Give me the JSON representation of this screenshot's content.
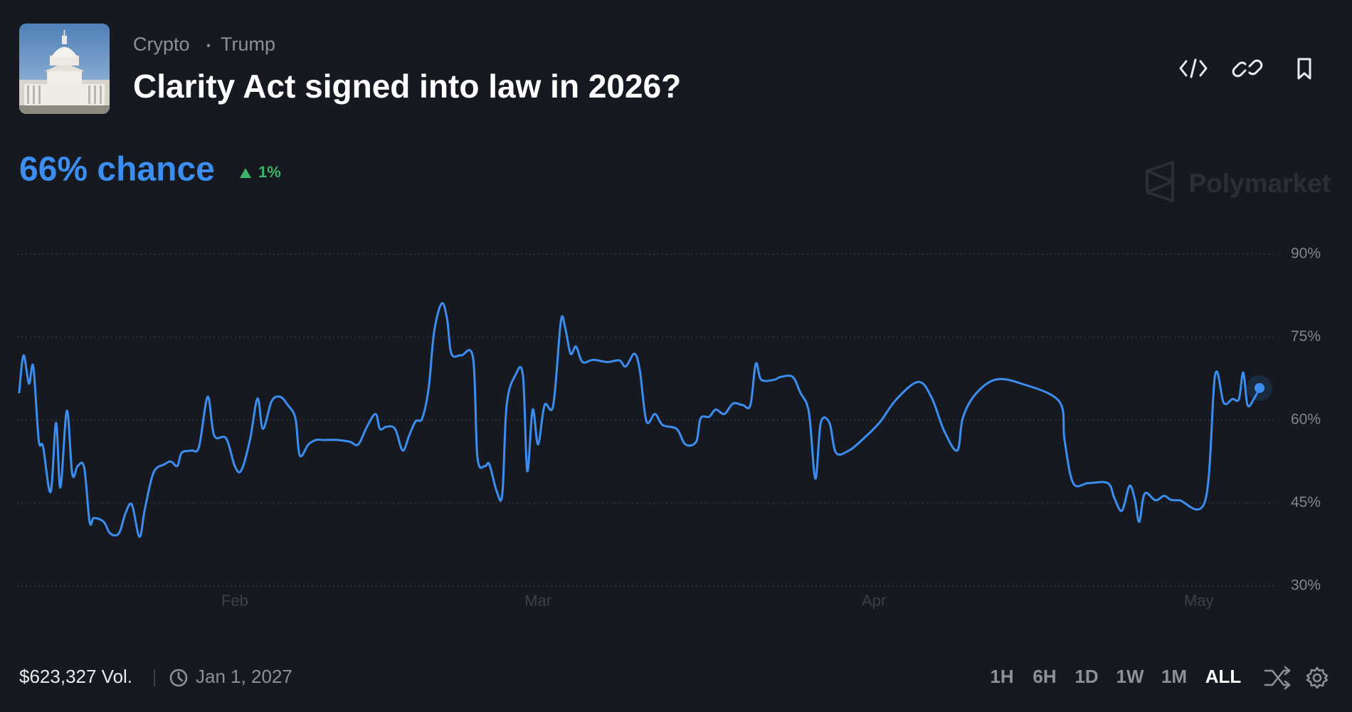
{
  "header": {
    "breadcrumbs": [
      "Crypto",
      "Trump"
    ],
    "title": "Clarity Act signed into law in 2026?"
  },
  "summary": {
    "chance": "66% chance",
    "change": "1%"
  },
  "watermark": "Polymarket",
  "chart_data": {
    "type": "line",
    "color": "#3b8ef0",
    "x": [
      12.1,
      12.5,
      13.0,
      13.4,
      13.9,
      14.3,
      15.0,
      15.5,
      15.9,
      16.5,
      17.0,
      17.5,
      18.1,
      18.6,
      19.0,
      19.9,
      20.5,
      21.3,
      21.9,
      22.5,
      23.2,
      23.7,
      24.5,
      25.5,
      26.1,
      26.7,
      27.1,
      28.0,
      28.7,
      29.5,
      30.1,
      31.2,
      32.0,
      32.6,
      33.4,
      34.1,
      34.6,
      35.4,
      36.2,
      36.9,
      37.6,
      38.0,
      38.8,
      39.5,
      40.2,
      41.5,
      42.6,
      43.4,
      44.2,
      45.0,
      45.4,
      46.0,
      46.8,
      47.5,
      48.1,
      48.7,
      49.3,
      49.9,
      50.4,
      51.1,
      51.6,
      52.0,
      52.9,
      54.0,
      54.4,
      55.1,
      55.5,
      56.2,
      56.7,
      57.1,
      57.9,
      58.6,
      59.0,
      59.5,
      60.0,
      60.6,
      61.4,
      62.1,
      62.5,
      63.0,
      63.5,
      64.1,
      65.1,
      66.4,
      67.5,
      68.1,
      68.9,
      69.4,
      70.0,
      70.8,
      71.5,
      72.8,
      73.6,
      74.6,
      75.0,
      75.8,
      76.4,
      77.2,
      78.0,
      78.9,
      79.6,
      80.1,
      80.6,
      81.8,
      82.4,
      83.5,
      84.2,
      85.0,
      85.6,
      86.1,
      86.9,
      87.5,
      88.7,
      89.9,
      91.5,
      93.1,
      95.1,
      96.3,
      97.5,
      98.7,
      99.2,
      100.3,
      102.2,
      104.6,
      108.1,
      108.6,
      109.4,
      110.8,
      112.6,
      113.2,
      113.9,
      114.6,
      115.1,
      115.5,
      116.0,
      117.0,
      117.8,
      118.4,
      119.2,
      121.6,
      122.5,
      123.3,
      124.1,
      124.7,
      125.1,
      125.5,
      126.1,
      126.6
    ],
    "values": [
      65.0,
      71.7,
      66.6,
      69.7,
      56.4,
      55.2,
      47.0,
      59.5,
      47.8,
      61.7,
      50.2,
      51.7,
      51.4,
      41.6,
      42.3,
      41.6,
      39.5,
      39.5,
      43.1,
      44.7,
      38.9,
      43.9,
      50.5,
      52.0,
      52.5,
      51.7,
      54.1,
      54.5,
      55.2,
      64.2,
      57.2,
      56.7,
      51.7,
      50.9,
      56.4,
      63.9,
      58.4,
      63.4,
      64.2,
      62.7,
      60.3,
      53.6,
      55.6,
      56.4,
      56.4,
      56.4,
      56.1,
      55.6,
      58.8,
      61.1,
      58.4,
      58.8,
      58.4,
      54.5,
      57.2,
      59.8,
      60.3,
      65.8,
      75.9,
      81.1,
      78.3,
      72.0,
      71.7,
      71.2,
      53.3,
      51.7,
      52.0,
      47.0,
      46.7,
      62.7,
      68.1,
      68.1,
      50.8,
      61.9,
      55.6,
      62.7,
      62.7,
      77.8,
      76.7,
      72.0,
      73.3,
      70.5,
      70.9,
      70.5,
      70.8,
      69.7,
      72.0,
      68.9,
      59.8,
      61.1,
      59.1,
      58.4,
      55.6,
      56.1,
      60.3,
      60.6,
      61.9,
      61.1,
      63.0,
      62.7,
      62.7,
      70.2,
      67.3,
      67.3,
      67.8,
      67.8,
      65.0,
      61.4,
      49.4,
      59.5,
      59.5,
      54.1,
      54.5,
      56.4,
      59.5,
      63.8,
      66.9,
      64.2,
      58.0,
      54.5,
      60.3,
      64.5,
      67.3,
      66.6,
      63.4,
      56.4,
      48.6,
      48.6,
      48.6,
      45.9,
      43.6,
      48.1,
      45.6,
      41.6,
      46.7,
      45.5,
      46.3,
      45.6,
      45.5,
      45.5,
      68.1,
      63.1,
      63.8,
      63.8,
      68.6,
      62.7,
      63.9,
      65.8
    ],
    "xlim": [
      12.1,
      126.6
    ],
    "xticks": [
      {
        "value": 32,
        "label": "Feb"
      },
      {
        "value": 60,
        "label": "Mar"
      },
      {
        "value": 91,
        "label": "Apr"
      },
      {
        "value": 121,
        "label": "May"
      }
    ],
    "ylim": [
      30,
      90
    ],
    "yticks": [
      {
        "value": 90,
        "label": "90%"
      },
      {
        "value": 75,
        "label": "75%"
      },
      {
        "value": 60,
        "label": "60%"
      },
      {
        "value": 45,
        "label": "45%"
      },
      {
        "value": 30,
        "label": "30%"
      }
    ],
    "grid": true
  },
  "footer": {
    "volume": "$623,327 Vol.",
    "end_date": "Jan 1, 2027",
    "ranges": [
      "1H",
      "6H",
      "1D",
      "1W",
      "1M",
      "ALL"
    ]
  }
}
